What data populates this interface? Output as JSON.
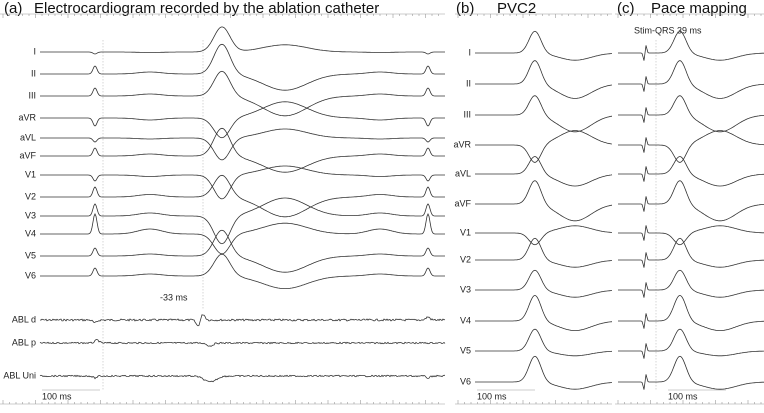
{
  "panels": [
    {
      "letter": "(a)",
      "title": "Electrocardiogram recorded by the ablation catheter",
      "leads": [
        "I",
        "II",
        "III",
        "aVR",
        "aVL",
        "aVF",
        "V1",
        "V2",
        "V3",
        "V4",
        "V5",
        "V6",
        "ABL d",
        "ABL p",
        "ABL Uni"
      ],
      "annotation": "-33 ms",
      "scale": "100 ms"
    },
    {
      "letter": "(b)",
      "title": "PVC2",
      "leads": [
        "I",
        "II",
        "III",
        "aVR",
        "aVL",
        "aVF",
        "V1",
        "V2",
        "V3",
        "V4",
        "V5",
        "V6"
      ],
      "scale": "100 ms"
    },
    {
      "letter": "(c)",
      "title": "Pace mapping",
      "annotation": "Stim-QRS 39 ms",
      "scale": "100 ms"
    }
  ]
}
